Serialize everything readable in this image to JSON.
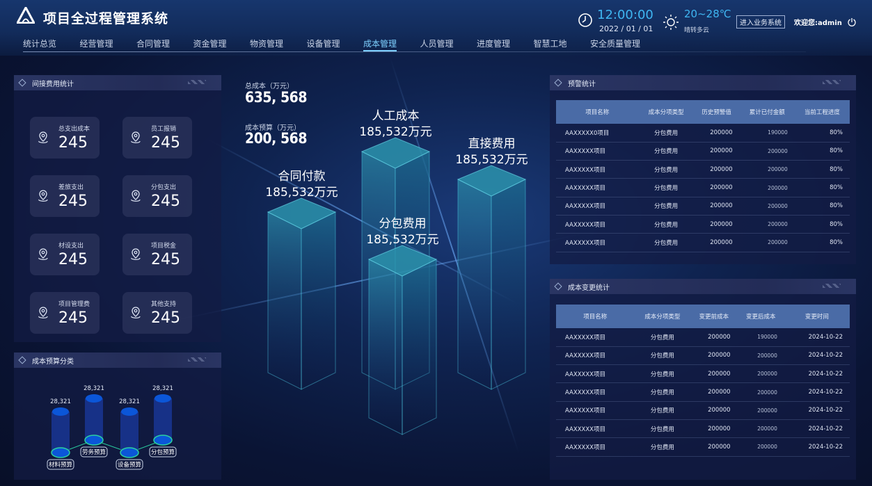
{
  "header": {
    "title": "项目全过程管理系统",
    "time": "12:00:00",
    "date": "2022 / 01 / 01",
    "temperature": "20~28℃",
    "weather": "晴转多云",
    "business_button": "进入业务系统",
    "welcome": "欢迎您:admin"
  },
  "nav": {
    "items": [
      "统计总览",
      "经营管理",
      "合同管理",
      "资金管理",
      "物资管理",
      "设备管理",
      "成本管理",
      "人员管理",
      "进度管理",
      "智慧工地",
      "安全质量管理"
    ],
    "active": "成本管理",
    "accent": "#7fd1ff"
  },
  "indirect": {
    "title": "间接费用统计",
    "cards": [
      {
        "label": "总支出成本",
        "value": "245"
      },
      {
        "label": "员工报销",
        "value": "245"
      },
      {
        "label": "差旅支出",
        "value": "245"
      },
      {
        "label": "分包支出",
        "value": "245"
      },
      {
        "label": "材设支出",
        "value": "245"
      },
      {
        "label": "项目税金",
        "value": "245"
      },
      {
        "label": "项目管理费",
        "value": "245"
      },
      {
        "label": "其他支持",
        "value": "245"
      }
    ]
  },
  "center": {
    "total_label": "总成本（万元）",
    "total_value": "635, 568",
    "budget_label": "成本预算（万元）",
    "budget_value": "200, 568",
    "pillars": [
      {
        "name": "合同付款",
        "value": "185,532万元"
      },
      {
        "name": "人工成本",
        "value": "185,532万元"
      },
      {
        "name": "分包费用",
        "value": "185,532万元"
      },
      {
        "name": "直接费用",
        "value": "185,532万元"
      }
    ]
  },
  "budget": {
    "title": "成本预算分类",
    "chart_data": {
      "type": "bar",
      "categories": [
        "材料预算",
        "劳务预算",
        "设备预算",
        "分包预算"
      ],
      "values": [
        28321,
        28321,
        28321,
        28321
      ],
      "data_labels": [
        "28,321",
        "28,321",
        "28,321",
        "28,321"
      ]
    }
  },
  "warning": {
    "title": "预警统计",
    "columns": [
      "项目名称",
      "成本分项类型",
      "历史预警值",
      "累计已付金额",
      "当前工程进度"
    ],
    "rows": [
      [
        "AAXXXXX0项目",
        "分包费用",
        "200000",
        "190000",
        "80%"
      ],
      [
        "AAXXXXX项目",
        "分包费用",
        "200000",
        "200000",
        "80%"
      ],
      [
        "AAXXXXX项目",
        "分包费用",
        "200000",
        "200000",
        "80%"
      ],
      [
        "AAXXXXX项目",
        "分包费用",
        "200000",
        "200000",
        "80%"
      ],
      [
        "AAXXXXX项目",
        "分包费用",
        "200000",
        "200000",
        "80%"
      ],
      [
        "AAXXXXX项目",
        "分包费用",
        "200000",
        "200000",
        "80%"
      ],
      [
        "AAXXXXX项目",
        "分包费用",
        "200000",
        "200000",
        "80%"
      ]
    ]
  },
  "change": {
    "title": "成本变更统计",
    "columns": [
      "项目名称",
      "成本分项类型",
      "变更前成本",
      "变更后成本",
      "变更时间"
    ],
    "rows": [
      [
        "AAXXXXX项目",
        "分包费用",
        "200000",
        "190000",
        "2024-10-22"
      ],
      [
        "AAXXXXX项目",
        "分包费用",
        "200000",
        "200000",
        "2024-10-22"
      ],
      [
        "AAXXXXX项目",
        "分包费用",
        "200000",
        "200000",
        "2024-10-22"
      ],
      [
        "AAXXXXX项目",
        "分包费用",
        "200000",
        "200000",
        "2024-10-22"
      ],
      [
        "AAXXXXX项目",
        "分包费用",
        "200000",
        "200000",
        "2024-10-22"
      ],
      [
        "AAXXXXX项目",
        "分包费用",
        "200000",
        "200000",
        "2024-10-22"
      ],
      [
        "AAXXXXX项目",
        "分包费用",
        "200000",
        "200000",
        "2024-10-22"
      ]
    ]
  }
}
